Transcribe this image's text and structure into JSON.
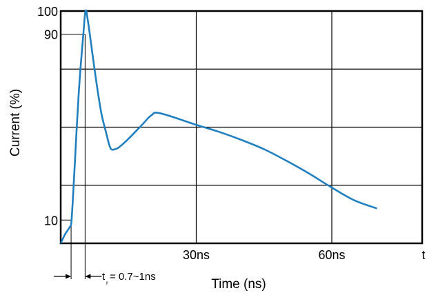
{
  "chart_data": {
    "type": "line",
    "xlabel": "Time (ns)",
    "ylabel": "Current (%)",
    "x_end_label": "t",
    "xlim": [
      0,
      80
    ],
    "ylim": [
      0,
      100
    ],
    "x_ticks": [
      {
        "value": 30,
        "label": "30ns"
      },
      {
        "value": 60,
        "label": "60ns"
      }
    ],
    "y_ticks": [
      {
        "value": 100,
        "label": "100"
      },
      {
        "value": 90,
        "label": "90"
      },
      {
        "value": 10,
        "label": "10"
      }
    ],
    "grid": true,
    "grid_x": [
      30,
      60
    ],
    "grid_y": [
      25,
      50,
      75
    ],
    "rise_time": {
      "x_start": 2.3,
      "x_end": 5.4,
      "label_t": "t",
      "label_sub": "r",
      "label_value": "= 0.7~1ns"
    },
    "series": [
      {
        "color": "#1f7fc0",
        "x": [
          0,
          1,
          2,
          2.4,
          3,
          4,
          5,
          5.5,
          6,
          7,
          8,
          9,
          10,
          11,
          12,
          13,
          15,
          18,
          20,
          22,
          30,
          35,
          40,
          45,
          50,
          55,
          60,
          65,
          70
        ],
        "y": [
          0,
          4,
          7,
          10,
          30,
          65,
          90,
          100,
          96,
          82,
          68,
          56,
          48,
          41,
          40.5,
          41.5,
          45,
          51,
          55,
          56,
          51,
          48,
          44.5,
          40.5,
          35.5,
          30,
          24,
          18.5,
          15
        ]
      }
    ]
  }
}
